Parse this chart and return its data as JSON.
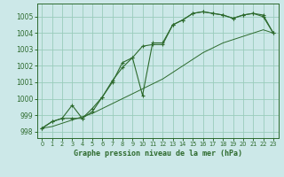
{
  "title": "Graphe pression niveau de la mer (hPa)",
  "background_color": "#cce8e8",
  "grid_color": "#99ccbb",
  "line_color": "#2d6a2d",
  "ylim": [
    997.6,
    1005.8
  ],
  "xlim": [
    -0.5,
    23.5
  ],
  "yticks": [
    998,
    999,
    1000,
    1001,
    1002,
    1003,
    1004,
    1005
  ],
  "xticks": [
    0,
    1,
    2,
    3,
    4,
    5,
    6,
    7,
    8,
    9,
    10,
    11,
    12,
    13,
    14,
    15,
    16,
    17,
    18,
    19,
    20,
    21,
    22,
    23
  ],
  "series1_x": [
    0,
    1,
    2,
    3,
    4,
    5,
    6,
    7,
    8,
    9,
    10,
    11,
    12,
    13,
    14,
    15,
    16,
    17,
    18,
    19,
    20,
    21,
    22,
    23
  ],
  "series1_y": [
    998.2,
    998.6,
    998.8,
    998.8,
    998.8,
    999.4,
    1000.1,
    1001.0,
    1002.2,
    1002.5,
    1003.2,
    1003.3,
    1003.3,
    1004.5,
    1004.8,
    1005.2,
    1005.3,
    1005.2,
    1005.1,
    1004.9,
    1005.1,
    1005.2,
    1005.1,
    1004.0
  ],
  "series2_x": [
    0,
    1,
    2,
    3,
    4,
    5,
    6,
    7,
    8,
    9,
    10,
    11,
    12,
    13,
    14,
    15,
    16,
    17,
    18,
    19,
    20,
    21,
    22,
    23
  ],
  "series2_y": [
    998.2,
    998.3,
    998.5,
    998.7,
    998.9,
    999.1,
    999.4,
    999.7,
    1000.0,
    1000.3,
    1000.6,
    1000.9,
    1001.2,
    1001.6,
    1002.0,
    1002.4,
    1002.8,
    1003.1,
    1003.4,
    1003.6,
    1003.8,
    1004.0,
    1004.2,
    1004.0
  ],
  "series3_x": [
    0,
    1,
    2,
    3,
    4,
    5,
    6,
    7,
    8,
    9,
    10,
    11,
    12,
    13,
    14,
    15,
    16,
    17,
    18,
    19,
    20,
    21,
    22,
    23
  ],
  "series3_y": [
    998.2,
    998.6,
    998.8,
    999.6,
    998.8,
    999.2,
    1000.1,
    1001.1,
    1001.9,
    1002.5,
    1000.2,
    1003.4,
    1003.4,
    1004.5,
    1004.8,
    1005.2,
    1005.3,
    1005.2,
    1005.1,
    1004.9,
    1005.1,
    1005.2,
    1005.0,
    1004.0
  ]
}
